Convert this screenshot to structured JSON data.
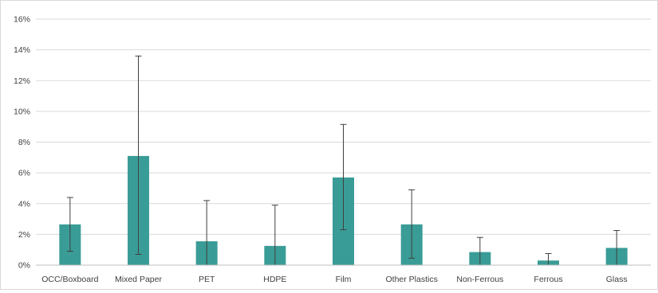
{
  "chart_data": {
    "type": "bar",
    "categories": [
      "OCC/Boxboard",
      "Mixed Paper",
      "PET",
      "HDPE",
      "Film",
      "Other Plastics",
      "Non-Ferrous",
      "Ferrous",
      "Glass"
    ],
    "values": [
      2.65,
      7.1,
      1.55,
      1.25,
      5.7,
      2.65,
      0.85,
      0.3,
      1.12
    ],
    "error_low": [
      0.9,
      0.7,
      0.0,
      0.0,
      2.3,
      0.45,
      0.0,
      0.0,
      0.0
    ],
    "error_high": [
      4.4,
      13.6,
      4.2,
      3.9,
      9.15,
      4.9,
      1.8,
      0.75,
      2.25
    ],
    "ylim": [
      0,
      16
    ],
    "yticks": [
      "0%",
      "2%",
      "4%",
      "6%",
      "8%",
      "10%",
      "12%",
      "14%",
      "16%"
    ],
    "ytick_values": [
      0,
      2,
      4,
      6,
      8,
      10,
      12,
      14,
      16
    ],
    "grid": true,
    "bar_color": "#3a9c96",
    "title": "",
    "xlabel": "",
    "ylabel": ""
  }
}
